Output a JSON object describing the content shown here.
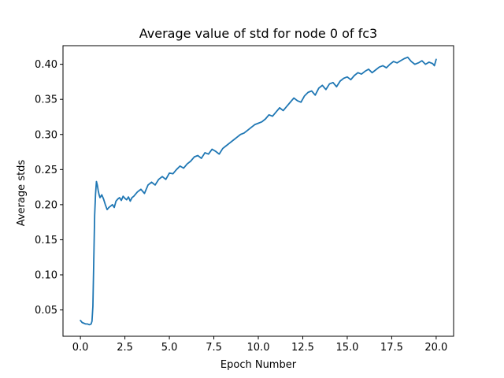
{
  "chart_data": {
    "type": "line",
    "title": "Average value of std for node 0 of fc3",
    "xlabel": "Epoch Number",
    "ylabel": "Average stds",
    "xlim": [
      -0.98,
      20.98
    ],
    "ylim": [
      0.0125,
      0.4265
    ],
    "grid": false,
    "legend": "none",
    "x_ticks": [
      0.0,
      2.5,
      5.0,
      7.5,
      10.0,
      12.5,
      15.0,
      17.5,
      20.0
    ],
    "x_tick_labels": [
      "0.0",
      "2.5",
      "5.0",
      "7.5",
      "10.0",
      "12.5",
      "15.0",
      "17.5",
      "20.0"
    ],
    "y_ticks": [
      0.05,
      0.1,
      0.15,
      0.2,
      0.25,
      0.3,
      0.35,
      0.4
    ],
    "y_tick_labels": [
      "0.05",
      "0.10",
      "0.15",
      "0.20",
      "0.25",
      "0.30",
      "0.35",
      "0.40"
    ],
    "series": [
      {
        "name": "average std",
        "color": "#1f77b4",
        "x": [
          0.0,
          0.1,
          0.2,
          0.3,
          0.4,
          0.5,
          0.6,
          0.65,
          0.7,
          0.75,
          0.8,
          0.85,
          0.9,
          0.95,
          1.0,
          1.05,
          1.1,
          1.2,
          1.3,
          1.4,
          1.5,
          1.6,
          1.7,
          1.8,
          1.9,
          2.0,
          2.1,
          2.2,
          2.3,
          2.4,
          2.5,
          2.6,
          2.7,
          2.8,
          2.9,
          3.0,
          3.2,
          3.4,
          3.6,
          3.8,
          4.0,
          4.2,
          4.4,
          4.6,
          4.8,
          5.0,
          5.2,
          5.4,
          5.6,
          5.8,
          6.0,
          6.2,
          6.4,
          6.6,
          6.8,
          7.0,
          7.2,
          7.4,
          7.6,
          7.8,
          8.0,
          8.2,
          8.4,
          8.6,
          8.8,
          9.0,
          9.2,
          9.4,
          9.6,
          9.8,
          10.0,
          10.2,
          10.4,
          10.6,
          10.8,
          11.0,
          11.2,
          11.4,
          11.6,
          11.8,
          12.0,
          12.2,
          12.4,
          12.6,
          12.8,
          13.0,
          13.2,
          13.4,
          13.6,
          13.8,
          14.0,
          14.2,
          14.4,
          14.6,
          14.8,
          15.0,
          15.2,
          15.4,
          15.6,
          15.8,
          16.0,
          16.2,
          16.4,
          16.6,
          16.8,
          17.0,
          17.2,
          17.4,
          17.6,
          17.8,
          18.0,
          18.2,
          18.4,
          18.6,
          18.8,
          19.0,
          19.2,
          19.4,
          19.6,
          19.8,
          19.9,
          20.0
        ],
        "y": [
          0.035,
          0.032,
          0.031,
          0.03,
          0.03,
          0.029,
          0.03,
          0.034,
          0.055,
          0.12,
          0.185,
          0.215,
          0.233,
          0.228,
          0.22,
          0.214,
          0.21,
          0.214,
          0.208,
          0.2,
          0.193,
          0.196,
          0.198,
          0.2,
          0.196,
          0.205,
          0.208,
          0.21,
          0.206,
          0.212,
          0.209,
          0.207,
          0.211,
          0.205,
          0.21,
          0.212,
          0.218,
          0.222,
          0.216,
          0.228,
          0.232,
          0.228,
          0.236,
          0.24,
          0.236,
          0.245,
          0.244,
          0.25,
          0.255,
          0.252,
          0.258,
          0.262,
          0.268,
          0.27,
          0.266,
          0.274,
          0.272,
          0.279,
          0.276,
          0.272,
          0.28,
          0.284,
          0.288,
          0.292,
          0.296,
          0.3,
          0.302,
          0.306,
          0.31,
          0.314,
          0.316,
          0.318,
          0.322,
          0.328,
          0.326,
          0.332,
          0.338,
          0.334,
          0.34,
          0.346,
          0.352,
          0.348,
          0.346,
          0.355,
          0.36,
          0.362,
          0.356,
          0.366,
          0.37,
          0.364,
          0.372,
          0.374,
          0.368,
          0.376,
          0.38,
          0.382,
          0.378,
          0.384,
          0.388,
          0.386,
          0.39,
          0.393,
          0.388,
          0.392,
          0.396,
          0.398,
          0.395,
          0.4,
          0.404,
          0.402,
          0.405,
          0.408,
          0.41,
          0.404,
          0.4,
          0.402,
          0.405,
          0.4,
          0.403,
          0.401,
          0.398,
          0.407
        ]
      }
    ]
  }
}
